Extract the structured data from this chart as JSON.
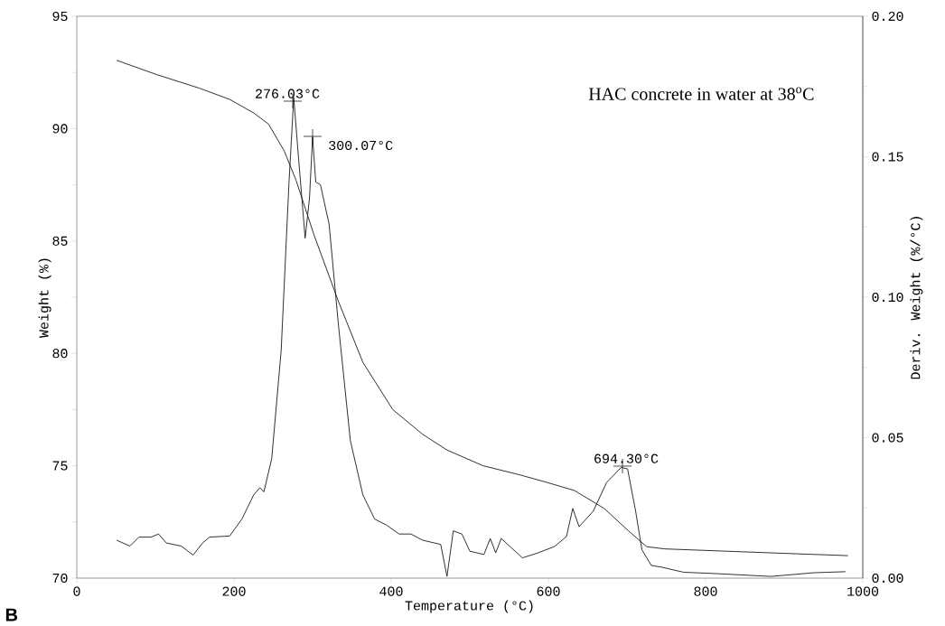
{
  "chart_data": {
    "type": "line",
    "xlabel": "Temperature (°C)",
    "ylabel": "Weight (%)",
    "y2label": "Deriv. Weight (%/°C)",
    "xlim": [
      0,
      1000
    ],
    "xticks": [
      0,
      200,
      400,
      600,
      800,
      1000
    ],
    "ylim": [
      70,
      95
    ],
    "yticks": [
      70,
      {
        "value": 72.5,
        "label": null
      },
      75,
      {
        "value": 77.5,
        "label": null
      },
      80,
      {
        "value": 82.5,
        "label": null
      },
      85,
      {
        "value": 87.5,
        "label": null
      },
      90,
      {
        "value": 92.5,
        "label": null
      },
      95
    ],
    "y2lim": [
      0,
      0.2
    ],
    "y2ticks": [
      {
        "value": 0,
        "label": "0.00"
      },
      {
        "value": 0.025,
        "label": null
      },
      {
        "value": 0.05,
        "label": "0.05"
      },
      {
        "value": 0.075,
        "label": null
      },
      {
        "value": 0.1,
        "label": "0.10"
      },
      {
        "value": 0.125,
        "label": null
      },
      {
        "value": 0.15,
        "label": "0.15"
      },
      {
        "value": 0.175,
        "label": null
      },
      {
        "value": 0.2,
        "label": "0.20"
      }
    ],
    "grid": false,
    "series": [
      {
        "color": "#1a1a1a",
        "x": [
          50.7,
          102,
          156,
          194.5,
          225,
          244,
          264,
          279,
          302,
          333,
          364,
          402,
          440,
          471,
          517,
          563,
          594,
          633,
          671,
          702,
          725,
          748,
          825,
          902,
          981
        ],
        "values": [
          93.04,
          92.4,
          91.8,
          91.3,
          90.7,
          90.2,
          89.0,
          87.7,
          85.25,
          82.3,
          79.6,
          77.5,
          76.4,
          75.7,
          75.0,
          74.6,
          74.3,
          73.9,
          73.1,
          72.1,
          71.4,
          71.3,
          71.2,
          71.1,
          71.0
        ]
      },
      {
        "color": "#1a1a1a",
        "axis": "y2",
        "x": [
          50.7,
          67.6,
          79,
          94.5,
          104,
          114,
          133,
          148,
          160,
          169,
          194.5,
          210,
          225,
          233,
          238,
          248,
          260,
          270,
          276,
          282,
          290.5,
          296,
          300,
          304,
          310,
          321,
          333,
          348,
          364,
          379,
          394,
          410,
          425,
          440,
          463,
          471,
          479,
          490,
          500,
          518,
          526,
          533,
          540,
          567,
          587,
          608,
          623,
          631,
          639,
          657,
          674,
          692.5,
          700.7,
          711,
          719,
          731,
          744,
          772,
          814,
          883,
          937,
          978
        ],
        "values": [
          0.0135,
          0.0114,
          0.0146,
          0.0146,
          0.0157,
          0.0125,
          0.0114,
          0.0082,
          0.0125,
          0.0146,
          0.015,
          0.021,
          0.0296,
          0.0322,
          0.0307,
          0.0425,
          0.081,
          0.141,
          0.171,
          0.15,
          0.121,
          0.135,
          0.157,
          0.141,
          0.14,
          0.126,
          0.0898,
          0.049,
          0.0296,
          0.021,
          0.0189,
          0.0157,
          0.0157,
          0.0135,
          0.012,
          0.0006,
          0.0168,
          0.0157,
          0.0096,
          0.0084,
          0.0141,
          0.009,
          0.0141,
          0.0072,
          0.009,
          0.0113,
          0.0148,
          0.0248,
          0.0183,
          0.0238,
          0.034,
          0.0394,
          0.0389,
          0.0238,
          0.0101,
          0.0045,
          0.0039,
          0.0021,
          0.0016,
          0.0006,
          0.0019,
          0.0023
        ]
      }
    ],
    "annotations": [
      "276.03°C",
      "300.07°C",
      "694.30°C",
      "HAC concrete in water at 38$^{o}$C",
      "B"
    ]
  }
}
